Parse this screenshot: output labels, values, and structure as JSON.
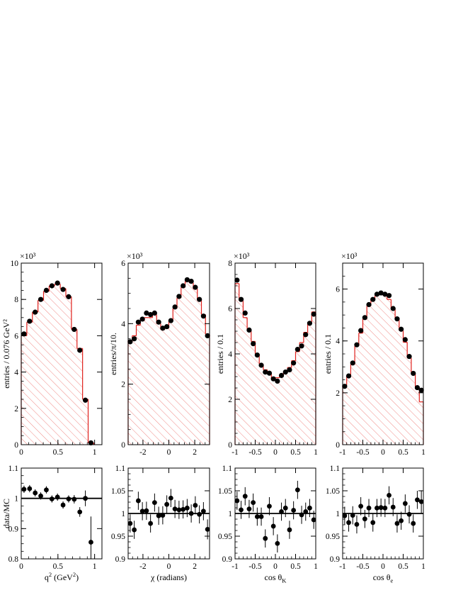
{
  "chart_data": [
    {
      "type": "histogram",
      "panel": "top",
      "exponent_label": "×10³",
      "ylabel": "entries / 0.076 GeV²",
      "xlim": [
        0,
        1.1
      ],
      "ylim": [
        0,
        10
      ],
      "xticks": [
        0,
        0.5,
        1
      ],
      "xtick_labels": [
        "0",
        "0.5",
        "1"
      ],
      "yticks": [
        0,
        2,
        4,
        6,
        8,
        10
      ],
      "ytick_labels": [
        "0",
        "2",
        "4",
        "6",
        "8",
        "10"
      ],
      "series": [
        {
          "name": "MC",
          "style": "step-hatched",
          "x": [
            0.038,
            0.114,
            0.19,
            0.266,
            0.342,
            0.418,
            0.494,
            0.57,
            0.646,
            0.722,
            0.798,
            0.874,
            0.95
          ],
          "values": [
            6.0,
            6.75,
            7.3,
            7.95,
            8.45,
            8.75,
            8.85,
            8.6,
            8.15,
            6.35,
            5.3,
            2.5,
            0.1
          ]
        },
        {
          "name": "data",
          "style": "markers",
          "x": [
            0.038,
            0.114,
            0.19,
            0.266,
            0.342,
            0.418,
            0.494,
            0.57,
            0.646,
            0.722,
            0.798,
            0.874,
            0.95
          ],
          "values": [
            6.1,
            6.8,
            7.3,
            8.0,
            8.5,
            8.75,
            8.9,
            8.55,
            8.15,
            6.35,
            5.2,
            2.45,
            0.1
          ]
        }
      ]
    },
    {
      "type": "histogram",
      "panel": "top",
      "exponent_label": "×10³",
      "ylabel": "entries/π/10.",
      "xlim": [
        -3.1416,
        3.1416
      ],
      "ylim": [
        0,
        6
      ],
      "xticks": [
        -2,
        0,
        2
      ],
      "xtick_labels": [
        "-2",
        "0",
        "2"
      ],
      "yticks": [
        0,
        2,
        4,
        6
      ],
      "ytick_labels": [
        "0",
        "2",
        "4",
        "6"
      ],
      "series": [
        {
          "name": "MC",
          "style": "step-hatched",
          "x": [
            -2.985,
            -2.67,
            -2.356,
            -2.042,
            -1.728,
            -1.414,
            -1.1,
            -0.785,
            -0.471,
            -0.157,
            0.157,
            0.471,
            0.785,
            1.1,
            1.414,
            1.728,
            2.042,
            2.356,
            2.67,
            2.985
          ],
          "values": [
            3.45,
            3.6,
            3.95,
            4.1,
            4.2,
            4.2,
            4.3,
            4.0,
            3.8,
            3.85,
            4.1,
            4.5,
            4.85,
            5.2,
            5.4,
            5.35,
            5.15,
            4.8,
            4.3,
            3.65
          ]
        },
        {
          "name": "data",
          "style": "markers",
          "x": [
            -2.985,
            -2.67,
            -2.356,
            -2.042,
            -1.728,
            -1.414,
            -1.1,
            -0.785,
            -0.471,
            -0.157,
            0.157,
            0.471,
            0.785,
            1.1,
            1.414,
            1.728,
            2.042,
            2.356,
            2.67,
            2.985
          ],
          "values": [
            3.4,
            3.5,
            4.05,
            4.15,
            4.35,
            4.3,
            4.35,
            4.05,
            3.85,
            3.9,
            4.1,
            4.55,
            4.9,
            5.25,
            5.45,
            5.4,
            5.2,
            4.8,
            4.25,
            3.6
          ]
        }
      ]
    },
    {
      "type": "histogram",
      "panel": "top",
      "exponent_label": "×10³",
      "ylabel": "entries / 0.1",
      "xlim": [
        -1,
        1
      ],
      "ylim": [
        0,
        8
      ],
      "xticks": [
        -1,
        -0.5,
        0,
        0.5,
        1
      ],
      "xtick_labels": [
        "-1",
        "-0.5",
        "0",
        "0.5",
        "1"
      ],
      "yticks": [
        0,
        2,
        4,
        6,
        8
      ],
      "ytick_labels": [
        "0",
        "2",
        "4",
        "6",
        "8"
      ],
      "series": [
        {
          "name": "MC",
          "style": "step-hatched",
          "x": [
            -0.95,
            -0.85,
            -0.75,
            -0.65,
            -0.55,
            -0.45,
            -0.35,
            -0.25,
            -0.15,
            -0.05,
            0.05,
            0.15,
            0.25,
            0.35,
            0.45,
            0.55,
            0.65,
            0.75,
            0.85,
            0.95
          ],
          "values": [
            7.1,
            6.35,
            5.6,
            5.0,
            4.55,
            4.0,
            3.55,
            3.3,
            3.15,
            2.95,
            2.95,
            3.0,
            3.2,
            3.4,
            3.7,
            4.1,
            4.5,
            4.95,
            5.4,
            5.85
          ]
        },
        {
          "name": "data",
          "style": "markers",
          "x": [
            -0.95,
            -0.85,
            -0.75,
            -0.65,
            -0.55,
            -0.45,
            -0.35,
            -0.25,
            -0.15,
            -0.05,
            0.05,
            0.15,
            0.25,
            0.35,
            0.45,
            0.55,
            0.65,
            0.75,
            0.85,
            0.95
          ],
          "values": [
            7.25,
            6.4,
            5.8,
            5.05,
            4.45,
            3.95,
            3.5,
            3.2,
            3.15,
            2.9,
            2.8,
            3.05,
            3.2,
            3.3,
            3.6,
            4.2,
            4.35,
            4.85,
            5.35,
            5.75
          ]
        }
      ]
    },
    {
      "type": "histogram",
      "panel": "top",
      "exponent_label": "×10³",
      "ylabel": "entries / 0.1",
      "xlim": [
        -1,
        1
      ],
      "ylim": [
        0,
        7
      ],
      "xticks": [
        -1,
        -0.5,
        0,
        0.5,
        1
      ],
      "xtick_labels": [
        "-1",
        "-0.5",
        "0",
        "0.5",
        "1"
      ],
      "yticks": [
        0,
        2,
        4,
        6
      ],
      "ytick_labels": [
        "0",
        "2",
        "4",
        "6"
      ],
      "series": [
        {
          "name": "MC",
          "style": "step-hatched",
          "x": [
            -0.95,
            -0.85,
            -0.75,
            -0.65,
            -0.55,
            -0.45,
            -0.35,
            -0.25,
            -0.15,
            -0.05,
            0.05,
            0.15,
            0.25,
            0.35,
            0.45,
            0.55,
            0.65,
            0.75,
            0.85,
            0.95
          ],
          "values": [
            2.3,
            2.65,
            3.1,
            3.8,
            4.3,
            4.85,
            5.35,
            5.6,
            5.75,
            5.8,
            5.75,
            5.6,
            5.25,
            4.85,
            4.4,
            3.95,
            3.35,
            2.75,
            2.15,
            1.65
          ]
        },
        {
          "name": "data",
          "style": "markers",
          "x": [
            -0.95,
            -0.85,
            -0.75,
            -0.65,
            -0.55,
            -0.45,
            -0.35,
            -0.25,
            -0.15,
            -0.05,
            0.05,
            0.15,
            0.25,
            0.35,
            0.45,
            0.55,
            0.65,
            0.75,
            0.85,
            0.95
          ],
          "values": [
            2.25,
            2.65,
            3.15,
            3.85,
            4.4,
            4.9,
            5.4,
            5.6,
            5.8,
            5.85,
            5.8,
            5.75,
            5.25,
            4.85,
            4.45,
            4.05,
            3.4,
            2.75,
            2.2,
            2.1
          ]
        }
      ]
    },
    {
      "type": "scatter",
      "panel": "ratio",
      "ylabel": "data/MC",
      "xlabel_main": "q",
      "xlabel_sup": "2",
      "xlabel_pre": " (GeV",
      "xlabel_sup2": "2",
      "xlabel_post": ")",
      "xlim": [
        0,
        1.1
      ],
      "ylim": [
        0.8,
        1.1
      ],
      "reference_line": 1.0,
      "xticks": [
        0,
        0.5,
        1
      ],
      "xtick_labels": [
        "0",
        "0.5",
        "1"
      ],
      "yticks": [
        0.8,
        0.9,
        1.0,
        1.1
      ],
      "ytick_labels": [
        "0.8",
        "0.9",
        "1",
        "1.1"
      ],
      "x": [
        0.038,
        0.114,
        0.19,
        0.266,
        0.342,
        0.418,
        0.494,
        0.57,
        0.646,
        0.722,
        0.798,
        0.874,
        0.95
      ],
      "values": [
        1.03,
        1.032,
        1.018,
        1.008,
        1.028,
        0.998,
        1.004,
        0.978,
        0.998,
        0.997,
        0.955,
        1.0,
        0.855
      ],
      "errors": [
        0.012,
        0.012,
        0.012,
        0.012,
        0.012,
        0.012,
        0.012,
        0.012,
        0.012,
        0.014,
        0.016,
        0.026,
        0.085
      ]
    },
    {
      "type": "scatter",
      "panel": "ratio",
      "xlabel_main": "χ",
      "xlabel_post": " (radians)",
      "xlim": [
        -3.1416,
        3.1416
      ],
      "ylim": [
        0.9,
        1.1
      ],
      "reference_line": 1.0,
      "xticks": [
        -2,
        0,
        2
      ],
      "xtick_labels": [
        "-2",
        "0",
        "2"
      ],
      "yticks": [
        0.9,
        0.95,
        1.0,
        1.05,
        1.1
      ],
      "ytick_labels": [
        "0.9",
        "0.95",
        "1",
        "1.05",
        "1.1"
      ],
      "x": [
        -2.985,
        -2.67,
        -2.356,
        -2.042,
        -1.728,
        -1.414,
        -1.1,
        -0.785,
        -0.471,
        -0.157,
        0.157,
        0.471,
        0.785,
        1.1,
        1.414,
        1.728,
        2.042,
        2.356,
        2.67,
        2.985
      ],
      "values": [
        0.978,
        0.964,
        1.028,
        1.005,
        1.006,
        0.978,
        1.024,
        0.995,
        0.996,
        1.02,
        1.034,
        1.01,
        1.008,
        1.009,
        1.012,
        1.0,
        1.018,
        0.998,
        1.005,
        0.965
      ],
      "errors": [
        0.02,
        0.02,
        0.02,
        0.02,
        0.02,
        0.02,
        0.02,
        0.02,
        0.02,
        0.02,
        0.02,
        0.02,
        0.02,
        0.02,
        0.02,
        0.02,
        0.02,
        0.02,
        0.02,
        0.022
      ]
    },
    {
      "type": "scatter",
      "panel": "ratio",
      "xlabel_main": "cos θ",
      "xlabel_sub": "K",
      "xlim": [
        -1,
        1
      ],
      "ylim": [
        0.9,
        1.1
      ],
      "reference_line": 1.0,
      "xticks": [
        -1,
        -0.5,
        0,
        0.5,
        1
      ],
      "xtick_labels": [
        "-1",
        "-0.5",
        "0",
        "0.5",
        "1"
      ],
      "yticks": [
        0.9,
        0.95,
        1.0,
        1.05,
        1.1
      ],
      "ytick_labels": [
        "0.9",
        "0.95",
        "1",
        "1.05",
        "1.1"
      ],
      "x": [
        -0.95,
        -0.85,
        -0.75,
        -0.65,
        -0.55,
        -0.45,
        -0.35,
        -0.25,
        -0.15,
        -0.05,
        0.05,
        0.15,
        0.25,
        0.35,
        0.45,
        0.55,
        0.65,
        0.75,
        0.85,
        0.95
      ],
      "values": [
        1.028,
        1.008,
        1.038,
        1.01,
        1.024,
        0.993,
        0.993,
        0.945,
        1.016,
        0.972,
        0.934,
        1.004,
        1.012,
        0.964,
        1.007,
        1.052,
        0.997,
        1.004,
        1.012,
        0.986
      ],
      "errors": [
        0.02,
        0.02,
        0.02,
        0.02,
        0.02,
        0.02,
        0.02,
        0.02,
        0.02,
        0.02,
        0.02,
        0.02,
        0.02,
        0.02,
        0.02,
        0.02,
        0.02,
        0.02,
        0.02,
        0.02
      ]
    },
    {
      "type": "scatter",
      "panel": "ratio",
      "xlabel_main": "cos θ",
      "xlabel_sub": "e",
      "xlim": [
        -1,
        1
      ],
      "ylim": [
        0.9,
        1.1
      ],
      "reference_line": 1.0,
      "xticks": [
        -1,
        -0.5,
        0,
        0.5,
        1
      ],
      "xtick_labels": [
        "-1",
        "-0.5",
        "0",
        "0.5",
        "1"
      ],
      "yticks": [
        0.9,
        0.95,
        1.0,
        1.05,
        1.1
      ],
      "ytick_labels": [
        "0.9",
        "0.95",
        "1",
        "1.05",
        "1.1"
      ],
      "x": [
        -0.95,
        -0.85,
        -0.75,
        -0.65,
        -0.55,
        -0.45,
        -0.35,
        -0.25,
        -0.15,
        -0.05,
        0.05,
        0.15,
        0.25,
        0.35,
        0.45,
        0.55,
        0.65,
        0.75,
        0.85,
        0.95
      ],
      "values": [
        0.995,
        0.98,
        0.996,
        0.976,
        1.016,
        0.988,
        1.012,
        0.98,
        1.012,
        1.013,
        1.012,
        1.04,
        1.014,
        0.978,
        0.984,
        1.022,
        0.998,
        0.978,
        1.03,
        1.026
      ],
      "errors": [
        0.02,
        0.02,
        0.02,
        0.02,
        0.02,
        0.02,
        0.02,
        0.02,
        0.02,
        0.02,
        0.02,
        0.02,
        0.02,
        0.02,
        0.02,
        0.02,
        0.02,
        0.02,
        0.02,
        0.025
      ]
    }
  ],
  "colors": {
    "mc_line": "#e0201c",
    "hatch": "#f08a86",
    "marker": "#000000",
    "axis": "#000000"
  }
}
